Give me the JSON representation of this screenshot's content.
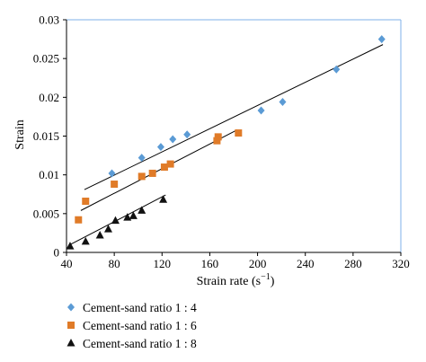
{
  "chart_data": {
    "type": "scatter",
    "title": "",
    "xlabel": "Strain rate (s",
    "xlabel_sup": "−1",
    "xlabel_end": ")",
    "ylabel": "Strain",
    "xlim": [
      40,
      320
    ],
    "ylim": [
      0,
      0.03
    ],
    "x_ticks": [
      40,
      80,
      120,
      160,
      200,
      240,
      280,
      320
    ],
    "y_ticks": [
      0,
      0.005,
      0.01,
      0.015,
      0.02,
      0.025,
      0.03
    ],
    "y_tick_labels": [
      "0",
      "0.005",
      "0.01",
      "0.015",
      "0.02",
      "0.025",
      "0.03"
    ],
    "grid": false,
    "legend_position": "below",
    "series": [
      {
        "name": "Cement-sand ratio 1 : 4",
        "marker": "diamond",
        "color": "#5b9bd5",
        "x": [
          78,
          103,
          119,
          129,
          141,
          203,
          221,
          266,
          304
        ],
        "y": [
          0.0102,
          0.0122,
          0.0136,
          0.0146,
          0.0152,
          0.0183,
          0.0194,
          0.0236,
          0.0275
        ],
        "trendline": {
          "x": [
            55,
            305
          ],
          "y": [
            0.0081,
            0.0268
          ]
        }
      },
      {
        "name": "Cement-sand ratio 1 : 6",
        "marker": "square",
        "color": "#e07b28",
        "x": [
          50,
          56,
          80,
          103,
          112,
          122,
          127,
          166,
          167,
          184
        ],
        "y": [
          0.0042,
          0.0066,
          0.0088,
          0.0098,
          0.0102,
          0.011,
          0.0114,
          0.0144,
          0.0149,
          0.0154
        ],
        "trendline": {
          "x": [
            52,
            183
          ],
          "y": [
            0.0054,
            0.0158
          ]
        }
      },
      {
        "name": "Cement-sand ratio 1 : 8",
        "marker": "triangle",
        "color": "#111111",
        "x": [
          43,
          56,
          68,
          75,
          81,
          91,
          96,
          103,
          121
        ],
        "y": [
          0.0008,
          0.0014,
          0.0022,
          0.003,
          0.0041,
          0.0045,
          0.0047,
          0.0054,
          0.0068
        ],
        "trendline": {
          "x": [
            43,
            123
          ],
          "y": [
            0.001,
            0.0074
          ]
        }
      }
    ]
  }
}
